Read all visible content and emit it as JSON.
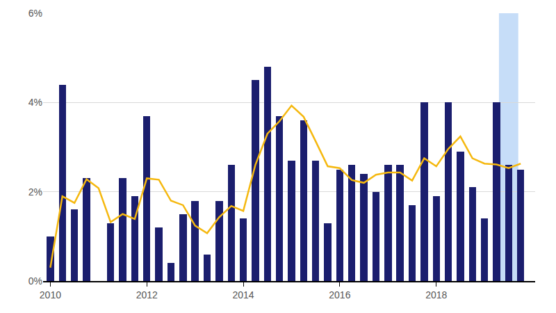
{
  "chart_data": {
    "type": "bar",
    "x": [
      2010.0,
      2010.25,
      2010.5,
      2010.75,
      2011.0,
      2011.25,
      2011.5,
      2011.75,
      2012.0,
      2012.25,
      2012.5,
      2012.75,
      2013.0,
      2013.25,
      2013.5,
      2013.75,
      2014.0,
      2014.25,
      2014.5,
      2014.75,
      2015.0,
      2015.25,
      2015.5,
      2015.75,
      2016.0,
      2016.25,
      2016.5,
      2016.75,
      2017.0,
      2017.25,
      2017.5,
      2017.75,
      2018.0,
      2018.25,
      2018.5,
      2018.75,
      2019.0,
      2019.25,
      2019.5,
      2019.75
    ],
    "series": [
      {
        "type": "bar",
        "color": "#1b1e6e",
        "values": [
          1.0,
          4.4,
          1.6,
          2.3,
          0,
          1.3,
          2.3,
          1.9,
          3.7,
          1.2,
          0.4,
          1.5,
          1.8,
          0.6,
          1.8,
          2.6,
          1.4,
          4.5,
          4.8,
          3.7,
          2.7,
          3.6,
          2.7,
          1.3,
          2.5,
          2.6,
          2.4,
          2.0,
          2.6,
          2.6,
          1.7,
          4.0,
          1.9,
          4.0,
          2.9,
          2.1,
          1.4,
          4.0,
          2.6,
          2.5
        ]
      },
      {
        "type": "line",
        "color": "#f5b80f",
        "values": [
          0.3,
          1.9,
          1.75,
          2.28,
          2.08,
          1.32,
          1.5,
          1.39,
          2.3,
          2.27,
          1.8,
          1.7,
          1.24,
          1.07,
          1.43,
          1.68,
          1.57,
          2.6,
          3.3,
          3.58,
          3.93,
          3.68,
          3.13,
          2.57,
          2.53,
          2.26,
          2.2,
          2.38,
          2.43,
          2.43,
          2.25,
          2.75,
          2.57,
          2.96,
          3.24,
          2.75,
          2.63,
          2.61,
          2.53,
          2.63
        ]
      }
    ],
    "highlight": [
      2019.3,
      2019.7
    ],
    "xlim": [
      2009.85,
      2020.05
    ],
    "xticks": [
      2010,
      2012,
      2014,
      2016,
      2018
    ],
    "ylim": [
      0,
      6
    ],
    "yticks": [
      {
        "value": 0,
        "label": "0%"
      },
      {
        "value": 2,
        "label": "2%"
      },
      {
        "value": 4,
        "label": "4%"
      },
      {
        "value": 6,
        "label": "6%"
      }
    ],
    "grid": true
  }
}
